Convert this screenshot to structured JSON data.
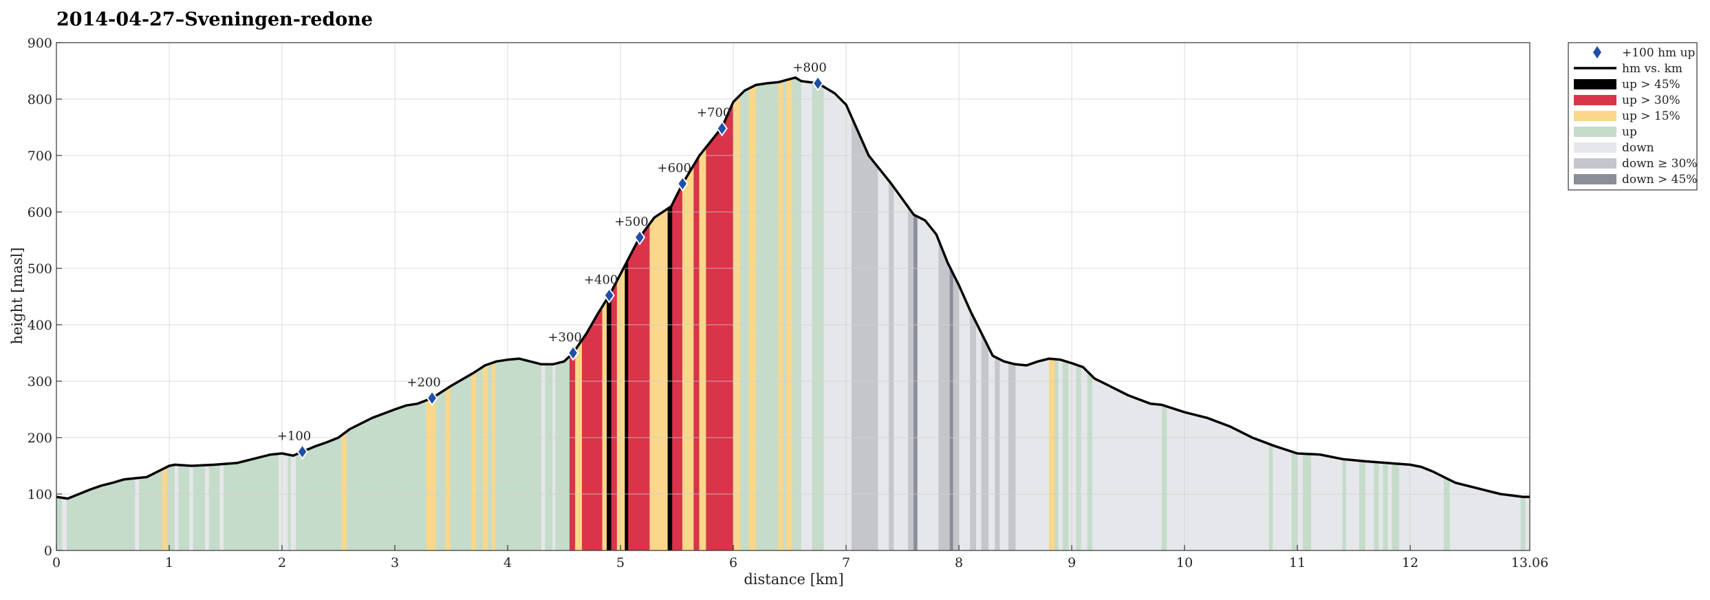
{
  "chart_data": {
    "type": "area",
    "title": "2014-04-27–Sveningen-redone",
    "xlabel": "distance [km]",
    "ylabel": "height [masl]",
    "xlim": [
      0,
      13.06
    ],
    "ylim": [
      0,
      900
    ],
    "xticks": [
      0,
      1,
      2,
      3,
      4,
      5,
      6,
      7,
      8,
      9,
      10,
      11,
      12
    ],
    "xtick_labels": [
      "0",
      "1",
      "2",
      "3",
      "4",
      "5",
      "6",
      "7",
      "8",
      "9",
      "10",
      "11",
      "12"
    ],
    "x_end_label": "13.06",
    "yticks": [
      0,
      100,
      200,
      300,
      400,
      500,
      600,
      700,
      800,
      900
    ],
    "ytick_labels": [
      "0",
      "100",
      "200",
      "300",
      "400",
      "500",
      "600",
      "700",
      "800",
      "900"
    ],
    "grid": true,
    "legend_position": "outside-top-right",
    "profile": {
      "x": [
        0,
        0.1,
        0.2,
        0.3,
        0.4,
        0.5,
        0.6,
        0.7,
        0.8,
        0.9,
        1.0,
        1.05,
        1.2,
        1.4,
        1.6,
        1.8,
        1.9,
        2.0,
        2.1,
        2.18,
        2.3,
        2.4,
        2.5,
        2.6,
        2.8,
        3.0,
        3.1,
        3.2,
        3.33,
        3.5,
        3.7,
        3.8,
        3.9,
        4.0,
        4.1,
        4.2,
        4.3,
        4.4,
        4.5,
        4.58,
        4.7,
        4.8,
        4.9,
        5.0,
        5.17,
        5.3,
        5.45,
        5.55,
        5.7,
        5.9,
        6.0,
        6.1,
        6.2,
        6.3,
        6.4,
        6.55,
        6.6,
        6.75,
        6.9,
        7.0,
        7.1,
        7.2,
        7.4,
        7.6,
        7.7,
        7.8,
        7.9,
        8.0,
        8.1,
        8.2,
        8.3,
        8.4,
        8.5,
        8.6,
        8.7,
        8.8,
        8.9,
        9.0,
        9.1,
        9.2,
        9.3,
        9.5,
        9.7,
        9.8,
        10.0,
        10.2,
        10.4,
        10.6,
        10.8,
        11.0,
        11.2,
        11.4,
        11.6,
        11.8,
        12.0,
        12.1,
        12.2,
        12.3,
        12.4,
        12.6,
        12.8,
        13.0,
        13.06
      ],
      "y": [
        95,
        92,
        100,
        108,
        115,
        120,
        126,
        128,
        130,
        140,
        150,
        152,
        150,
        152,
        155,
        165,
        170,
        172,
        168,
        175,
        185,
        192,
        200,
        215,
        235,
        250,
        257,
        260,
        270,
        292,
        315,
        328,
        335,
        338,
        340,
        335,
        330,
        330,
        335,
        350,
        385,
        420,
        452,
        490,
        555,
        590,
        610,
        650,
        700,
        750,
        795,
        815,
        825,
        828,
        830,
        838,
        832,
        828,
        810,
        790,
        745,
        700,
        650,
        595,
        585,
        560,
        510,
        470,
        425,
        385,
        345,
        335,
        330,
        328,
        335,
        340,
        338,
        332,
        325,
        305,
        295,
        275,
        260,
        258,
        245,
        235,
        220,
        200,
        185,
        172,
        170,
        162,
        158,
        155,
        152,
        148,
        140,
        130,
        120,
        110,
        100,
        95,
        95
      ]
    },
    "marker_points": [
      {
        "x": 2.18,
        "y": 175,
        "label": "+100"
      },
      {
        "x": 3.33,
        "y": 270,
        "label": "+200"
      },
      {
        "x": 4.58,
        "y": 350,
        "label": "+300"
      },
      {
        "x": 4.9,
        "y": 452,
        "label": "+400"
      },
      {
        "x": 5.17,
        "y": 555,
        "label": "+500"
      },
      {
        "x": 5.55,
        "y": 650,
        "label": "+600"
      },
      {
        "x": 5.9,
        "y": 748,
        "label": "+700"
      },
      {
        "x": 6.75,
        "y": 828,
        "label": "+800"
      }
    ],
    "slope_segments": [
      {
        "x0": 0,
        "x1": 6.55,
        "category": "up"
      },
      {
        "x0": 6.55,
        "x1": 13.06,
        "category": "down"
      },
      {
        "x0": 0.05,
        "x1": 0.09,
        "category": "down"
      },
      {
        "x0": 0.7,
        "x1": 0.73,
        "category": "down"
      },
      {
        "x0": 0.94,
        "x1": 0.98,
        "category": "up15"
      },
      {
        "x0": 1.05,
        "x1": 1.08,
        "category": "down"
      },
      {
        "x0": 1.18,
        "x1": 1.21,
        "category": "down"
      },
      {
        "x0": 1.32,
        "x1": 1.35,
        "category": "down"
      },
      {
        "x0": 1.45,
        "x1": 1.48,
        "category": "down"
      },
      {
        "x0": 1.97,
        "x1": 2.05,
        "category": "down"
      },
      {
        "x0": 2.08,
        "x1": 2.12,
        "category": "down"
      },
      {
        "x0": 2.53,
        "x1": 2.57,
        "category": "up15"
      },
      {
        "x0": 3.28,
        "x1": 3.36,
        "category": "up15"
      },
      {
        "x0": 3.45,
        "x1": 3.49,
        "category": "up15"
      },
      {
        "x0": 3.68,
        "x1": 3.72,
        "category": "up15"
      },
      {
        "x0": 3.78,
        "x1": 3.82,
        "category": "up15"
      },
      {
        "x0": 3.86,
        "x1": 3.89,
        "category": "up15"
      },
      {
        "x0": 4.3,
        "x1": 4.33,
        "category": "down"
      },
      {
        "x0": 4.4,
        "x1": 4.42,
        "category": "down"
      },
      {
        "x0": 4.55,
        "x1": 4.6,
        "category": "up30"
      },
      {
        "x0": 4.6,
        "x1": 4.66,
        "category": "up15"
      },
      {
        "x0": 4.66,
        "x1": 4.84,
        "category": "up30"
      },
      {
        "x0": 4.84,
        "x1": 4.88,
        "category": "up15"
      },
      {
        "x0": 4.88,
        "x1": 4.92,
        "category": "up45"
      },
      {
        "x0": 4.92,
        "x1": 4.97,
        "category": "up30"
      },
      {
        "x0": 4.97,
        "x1": 5.04,
        "category": "up15"
      },
      {
        "x0": 5.04,
        "x1": 5.07,
        "category": "up45"
      },
      {
        "x0": 5.07,
        "x1": 5.26,
        "category": "up30"
      },
      {
        "x0": 5.26,
        "x1": 5.3,
        "category": "up15"
      },
      {
        "x0": 5.3,
        "x1": 5.42,
        "category": "up15"
      },
      {
        "x0": 5.42,
        "x1": 5.46,
        "category": "up45"
      },
      {
        "x0": 5.46,
        "x1": 5.55,
        "category": "up30"
      },
      {
        "x0": 5.55,
        "x1": 5.65,
        "category": "up15"
      },
      {
        "x0": 5.65,
        "x1": 5.7,
        "category": "up30"
      },
      {
        "x0": 5.7,
        "x1": 5.76,
        "category": "up15"
      },
      {
        "x0": 5.76,
        "x1": 5.84,
        "category": "up30"
      },
      {
        "x0": 5.84,
        "x1": 6.0,
        "category": "up30"
      },
      {
        "x0": 6.0,
        "x1": 6.06,
        "category": "up15"
      },
      {
        "x0": 6.14,
        "x1": 6.2,
        "category": "up15"
      },
      {
        "x0": 6.4,
        "x1": 6.44,
        "category": "up15"
      },
      {
        "x0": 6.47,
        "x1": 6.52,
        "category": "up15"
      },
      {
        "x0": 6.55,
        "x1": 6.6,
        "category": "up"
      },
      {
        "x0": 6.7,
        "x1": 6.8,
        "category": "up"
      },
      {
        "x0": 7.05,
        "x1": 7.2,
        "category": "down30"
      },
      {
        "x0": 7.2,
        "x1": 7.28,
        "category": "down30"
      },
      {
        "x0": 7.38,
        "x1": 7.42,
        "category": "down30"
      },
      {
        "x0": 7.55,
        "x1": 7.6,
        "category": "down30"
      },
      {
        "x0": 7.6,
        "x1": 7.63,
        "category": "down45"
      },
      {
        "x0": 7.82,
        "x1": 7.92,
        "category": "down30"
      },
      {
        "x0": 7.92,
        "x1": 7.95,
        "category": "down45"
      },
      {
        "x0": 7.95,
        "x1": 8.0,
        "category": "down30"
      },
      {
        "x0": 8.1,
        "x1": 8.15,
        "category": "down30"
      },
      {
        "x0": 8.2,
        "x1": 8.26,
        "category": "down30"
      },
      {
        "x0": 8.32,
        "x1": 8.36,
        "category": "down30"
      },
      {
        "x0": 8.44,
        "x1": 8.5,
        "category": "down30"
      },
      {
        "x0": 8.8,
        "x1": 8.85,
        "category": "up15"
      },
      {
        "x0": 8.85,
        "x1": 8.88,
        "category": "up"
      },
      {
        "x0": 8.92,
        "x1": 8.97,
        "category": "up"
      },
      {
        "x0": 9.04,
        "x1": 9.08,
        "category": "up"
      },
      {
        "x0": 9.14,
        "x1": 9.18,
        "category": "up"
      },
      {
        "x0": 9.8,
        "x1": 9.84,
        "category": "up"
      },
      {
        "x0": 10.75,
        "x1": 10.78,
        "category": "up"
      },
      {
        "x0": 10.95,
        "x1": 11.0,
        "category": "up"
      },
      {
        "x0": 11.05,
        "x1": 11.12,
        "category": "up"
      },
      {
        "x0": 11.4,
        "x1": 11.43,
        "category": "up"
      },
      {
        "x0": 11.55,
        "x1": 11.6,
        "category": "up"
      },
      {
        "x0": 11.68,
        "x1": 11.72,
        "category": "up"
      },
      {
        "x0": 11.76,
        "x1": 11.8,
        "category": "up"
      },
      {
        "x0": 11.84,
        "x1": 11.9,
        "category": "up"
      },
      {
        "x0": 12.3,
        "x1": 12.35,
        "category": "up"
      },
      {
        "x0": 12.98,
        "x1": 13.02,
        "category": "up"
      }
    ],
    "legend": [
      {
        "key": "marker",
        "label": "+100 hm up"
      },
      {
        "key": "line",
        "label": "hm vs. km"
      },
      {
        "key": "up45",
        "label": "up > 45%"
      },
      {
        "key": "up30",
        "label": "up > 30%"
      },
      {
        "key": "up15",
        "label": "up > 15%"
      },
      {
        "key": "up",
        "label": "up"
      },
      {
        "key": "down",
        "label": "down"
      },
      {
        "key": "down30",
        "label": "down ≥ 30%"
      },
      {
        "key": "down45",
        "label": "down > 45%"
      }
    ],
    "colors": {
      "up45": "#000000",
      "up30": "#d9344a",
      "up15": "#fad78a",
      "up": "#c5dccb",
      "down": "#e6e7ea",
      "down30": "#c5c6cc",
      "down45": "#8a8e98",
      "line": "#000000",
      "marker": "#1f4fa8",
      "grid": "#d0d0d0"
    }
  }
}
